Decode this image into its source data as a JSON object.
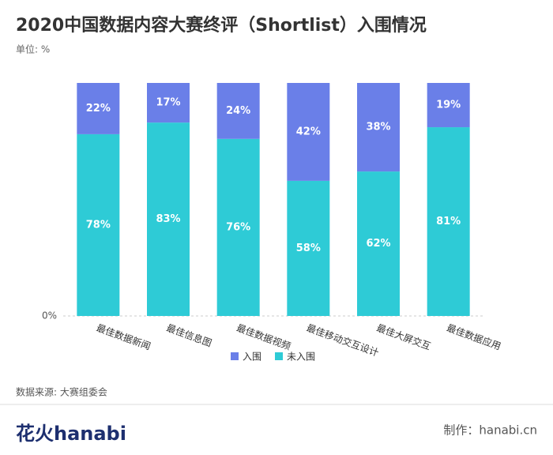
{
  "chart_data": {
    "type": "stacked_bar",
    "title": "2020中国数据内容大赛终评（Shortlist）入围情况",
    "subtitle": "单位: %",
    "categories": [
      "最佳数据新闻",
      "最佳信息图",
      "最佳数据视频",
      "最佳移动交互设计",
      "最佳大屏交互",
      "最佳数据应用"
    ],
    "series": [
      {
        "name": "未入围",
        "color": "#2ecbd6",
        "values": [
          78,
          83,
          76,
          58,
          62,
          81
        ],
        "value_labels": [
          "78%",
          "83%",
          "76%",
          "58%",
          "62%",
          "81%"
        ]
      },
      {
        "name": "入围",
        "color": "#6a7fe8",
        "values": [
          22,
          17,
          24,
          42,
          38,
          19
        ],
        "value_labels": [
          "22%",
          "17%",
          "24%",
          "42%",
          "38%",
          "19%"
        ]
      }
    ],
    "ylim": [
      0,
      100
    ],
    "yticks": [
      {
        "value": 0,
        "label": "0%"
      }
    ],
    "legend": "bottom",
    "source": "数据来源: 大赛组委会"
  },
  "footer": {
    "logo": "花火hanabi",
    "credit": "制作：hanabi.cn"
  }
}
